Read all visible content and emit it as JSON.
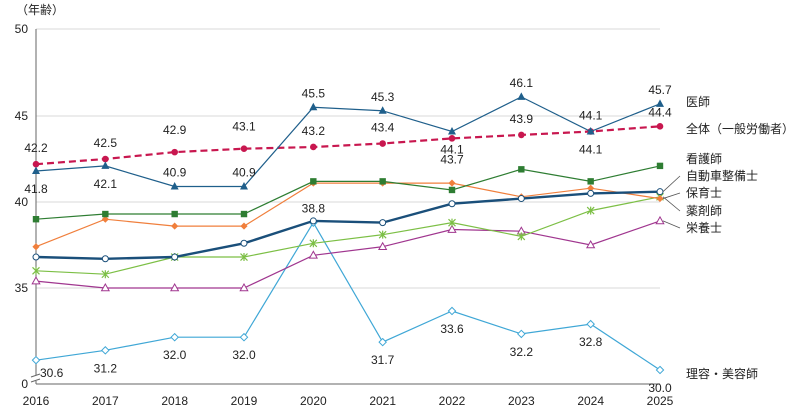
{
  "chart_data": {
    "type": "line",
    "ylabel": "（年齢）",
    "categories": [
      "2016",
      "2017",
      "2018",
      "2019",
      "2020",
      "2021",
      "2022",
      "2023",
      "2024",
      "2025"
    ],
    "y_ticks": [
      "0",
      "35",
      "40",
      "45",
      "50"
    ],
    "axis_break": true,
    "series": [
      {
        "name": "医師",
        "color": "#1f5f8b",
        "marker": "triangle",
        "values": [
          41.8,
          42.1,
          40.9,
          40.9,
          45.5,
          45.3,
          44.1,
          46.1,
          44.1,
          45.7
        ],
        "labels": [
          "41.8",
          "42.1",
          "40.9",
          "40.9",
          "45.5",
          "45.3",
          "44.1",
          "46.1",
          "44.1",
          "45.7"
        ]
      },
      {
        "name": "全体（一般労働者）",
        "color": "#c8174f",
        "marker": "circle",
        "dashed": true,
        "values": [
          42.2,
          42.5,
          42.9,
          43.1,
          43.2,
          43.4,
          43.7,
          43.9,
          44.1,
          44.4
        ],
        "labels": [
          "42.2",
          "42.5",
          "42.9",
          "43.1",
          "43.2",
          "43.4",
          "43.7",
          "43.9",
          "44.1",
          "44.4"
        ]
      },
      {
        "name": "看護師",
        "color": "#2e7d32",
        "marker": "square",
        "values": [
          39.0,
          39.3,
          39.3,
          39.3,
          41.2,
          41.2,
          40.7,
          41.9,
          41.2,
          42.1
        ]
      },
      {
        "name": "自動車整備士",
        "color": "#1a4f7a",
        "marker": "hollow-circle",
        "thick": true,
        "values": [
          36.8,
          36.7,
          36.8,
          37.6,
          38.9,
          38.8,
          39.9,
          40.2,
          40.5,
          40.6
        ]
      },
      {
        "name": "保育士",
        "color": "#f07f3c",
        "marker": "diamond",
        "values": [
          37.4,
          39.0,
          38.6,
          38.6,
          41.1,
          41.1,
          41.1,
          40.3,
          40.8,
          40.2
        ]
      },
      {
        "name": "薬剤師",
        "color": "#7cbf45",
        "marker": "star",
        "values": [
          36.0,
          35.8,
          36.8,
          36.8,
          37.6,
          38.1,
          38.8,
          38.0,
          39.5,
          40.3
        ]
      },
      {
        "name": "栄養士",
        "color": "#a0368f",
        "marker": "hollow-triangle",
        "values": [
          35.4,
          35.0,
          35.0,
          35.0,
          36.9,
          37.4,
          38.4,
          38.3,
          37.5,
          38.9
        ]
      },
      {
        "name": "理容・美容師",
        "color": "#3fa7d6",
        "marker": "hollow-diamond",
        "values": [
          30.6,
          31.2,
          32.0,
          32.0,
          38.8,
          31.7,
          33.6,
          32.2,
          32.8,
          30.0
        ],
        "labels": [
          "30.6",
          "31.2",
          "32.0",
          "32.0",
          "38.8",
          "31.7",
          "33.6",
          "32.2",
          "32.8",
          "30.0"
        ]
      }
    ]
  }
}
